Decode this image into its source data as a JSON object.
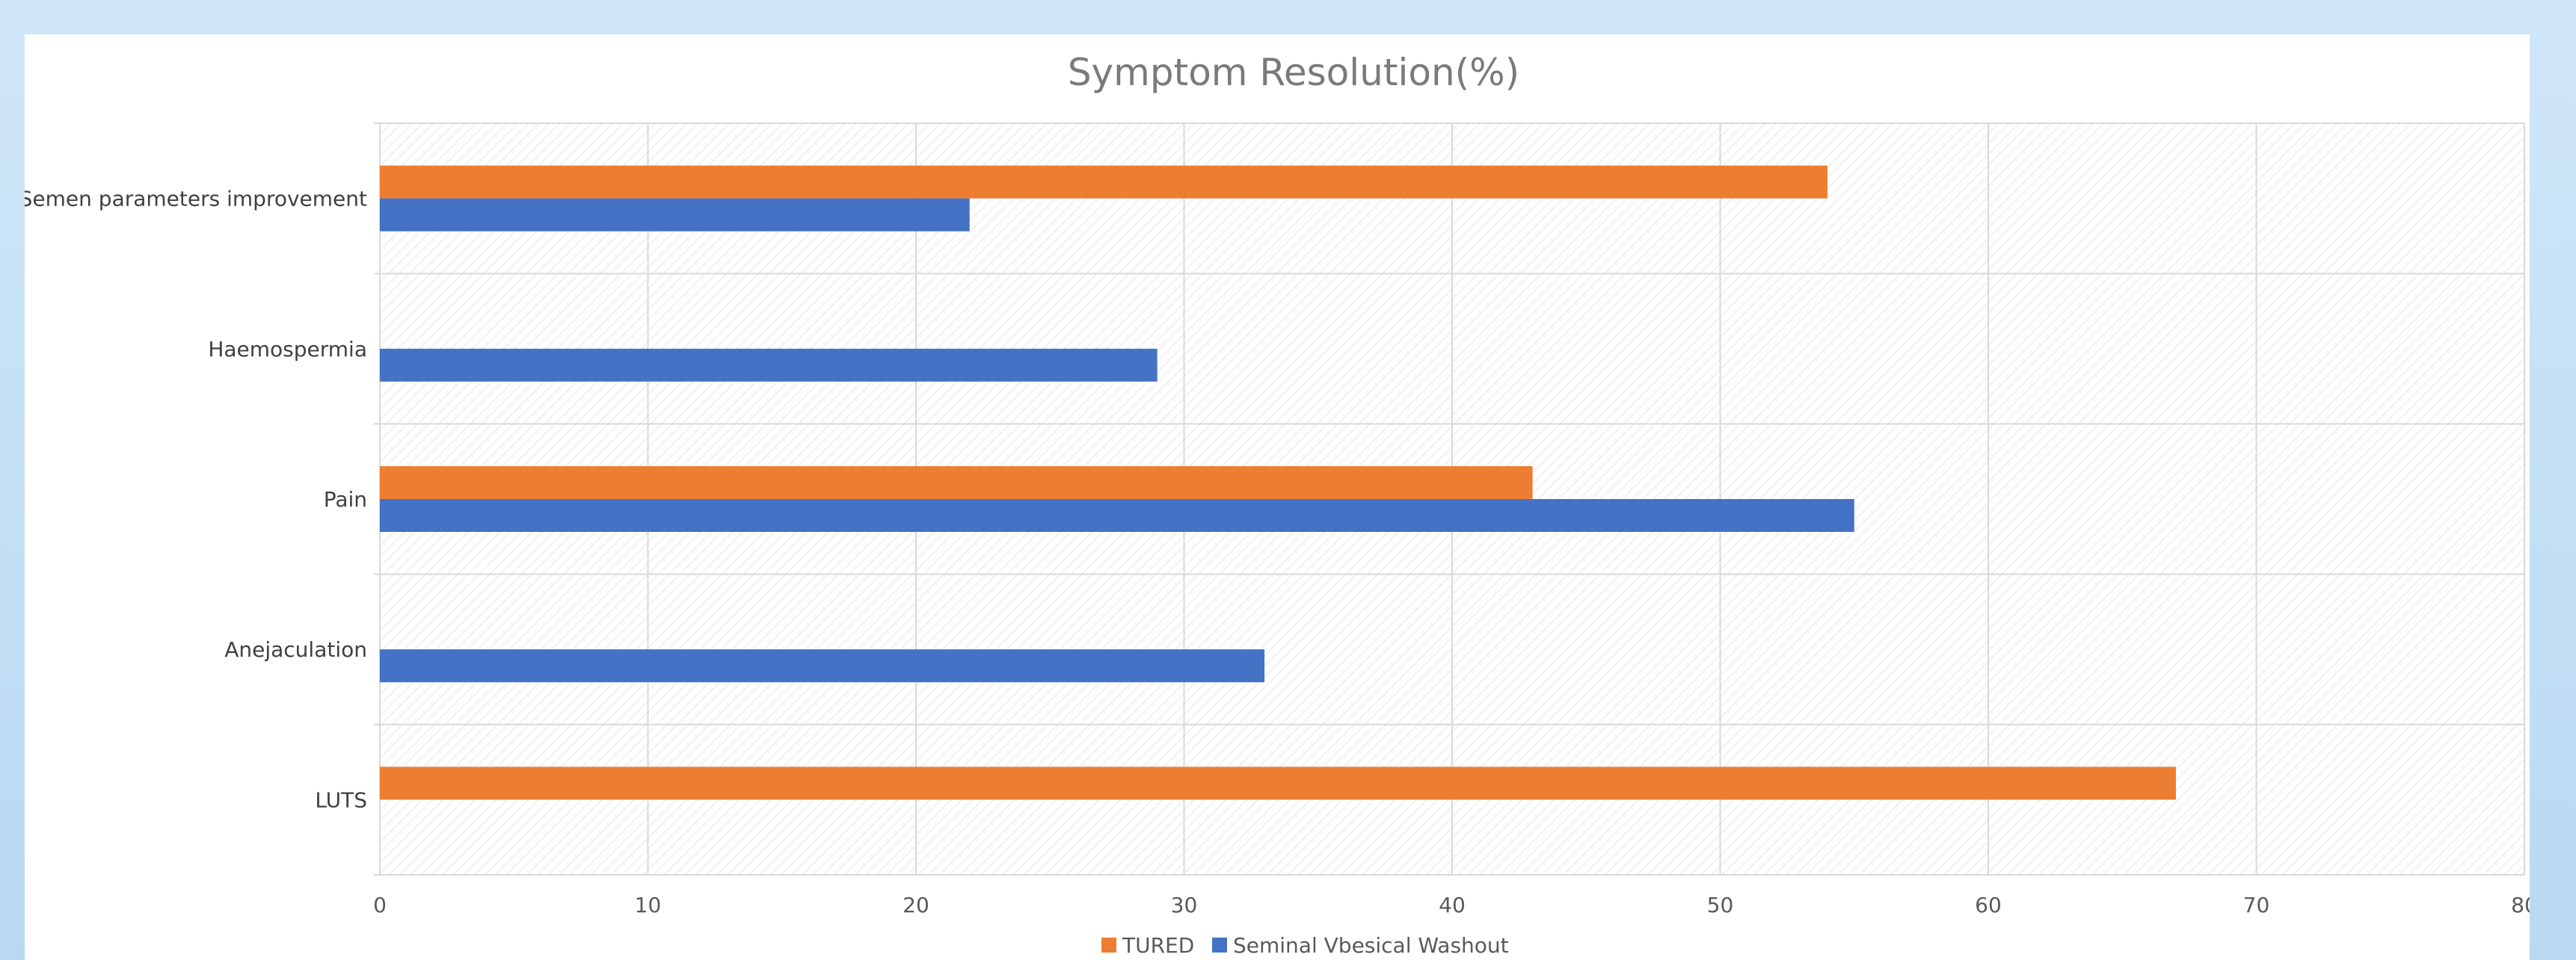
{
  "chart_data": {
    "type": "bar",
    "orientation": "horizontal",
    "title": "Symptom Resolution(%)",
    "categories": [
      "Semen parameters improvement",
      "Haemospermia",
      "Pain",
      "Anejaculation",
      "LUTS"
    ],
    "series": [
      {
        "name": "TURED",
        "color": "#ed7d31",
        "values": [
          54,
          null,
          43,
          null,
          67
        ]
      },
      {
        "name": "Seminal Vbesical Washout",
        "color": "#4472c4",
        "values": [
          22,
          29,
          55,
          33,
          null
        ]
      }
    ],
    "xlim": [
      0,
      80
    ],
    "xticks": [
      0,
      10,
      20,
      30,
      40,
      50,
      60,
      70,
      80
    ],
    "xlabel": "",
    "ylabel": "",
    "grid": true,
    "legend_position": "bottom"
  }
}
